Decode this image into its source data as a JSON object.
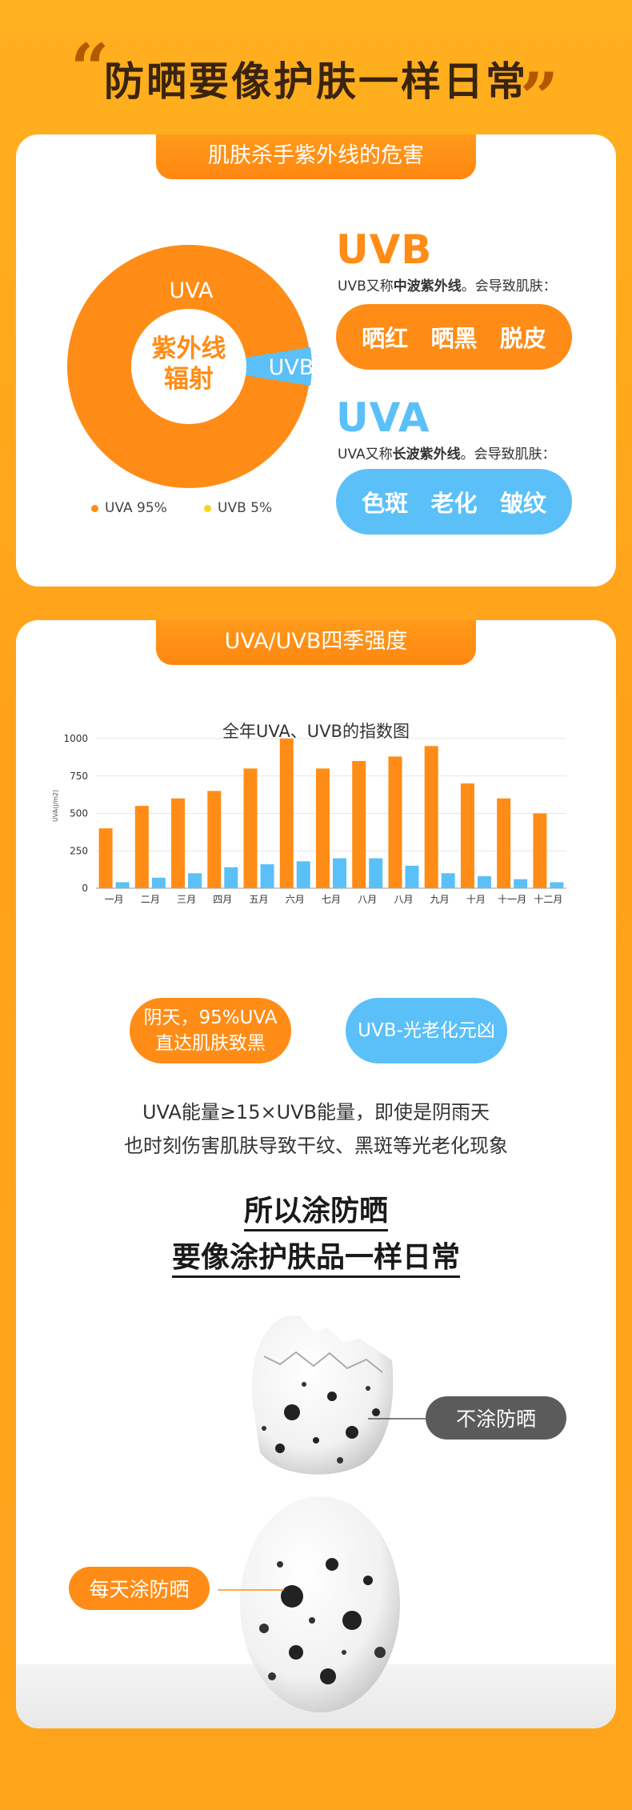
{
  "header": {
    "title": "防晒要像护肤一样日常",
    "open_quote": "“",
    "close_quote": "”"
  },
  "section1": {
    "tab": "肌肤杀手紫外线的危害",
    "donut": {
      "center_label_line1": "紫外线",
      "center_label_line2": "辐射",
      "uva_label": "UVA",
      "uvb_label": "UVB",
      "uva_share": 95,
      "uvb_share": 5,
      "uva_color": "#ff8c16",
      "uvb_color": "#5bc0f8"
    },
    "legend": [
      {
        "label": "UVA 95%",
        "color": "#ff8c16"
      },
      {
        "label": "UVB 5%",
        "color": "#ffd21f"
      }
    ],
    "uvb": {
      "heading": "UVB",
      "desc_prefix": "UVB又称",
      "desc_bold": "中波紫外线",
      "desc_suffix": "。会导致肌肤：",
      "effects": [
        "晒红",
        "晒黑",
        "脱皮"
      ],
      "color": "#ff8c16"
    },
    "uva": {
      "heading": "UVA",
      "desc_prefix": "UVA又称",
      "desc_bold": "长波紫外线",
      "desc_suffix": "。会导致肌肤：",
      "effects": [
        "色斑",
        "老化",
        "皱纹"
      ],
      "color": "#5bc0f8"
    }
  },
  "section2": {
    "tab": "UVA/UVB四季强度",
    "chart_title": "全年UVA、UVB的指数图",
    "bubble_left_line1": "阴天，95%UVA",
    "bubble_left_line2": "直达肌肤致黑",
    "bubble_right": "UVB-光老化元凶",
    "para_line1": "UVA能量≥15×UVB能量，即使是阴雨天",
    "para_line2": "也时刻伤害肌肤导致干纹、黑斑等光老化现象",
    "conclusion_line1": "所以涂防晒",
    "conclusion_line2": "要像涂护肤品一样日常",
    "tag_no": "不涂防晒",
    "tag_yes": "每天涂防晒"
  },
  "chart_data": {
    "type": "bar",
    "title": "全年UVA、UVB的指数图",
    "ylabel": "UVA(j/m2)",
    "ylim": [
      0,
      1000
    ],
    "yticks": [
      "0",
      "250",
      "500",
      "750",
      "1000"
    ],
    "categories": [
      "一月",
      "二月",
      "三月",
      "四月",
      "五月",
      "六月",
      "七月",
      "八月",
      "八月",
      "九月",
      "十月",
      "十一月",
      "十二月"
    ],
    "series": [
      {
        "values": [
          400,
          550,
          600,
          650,
          800,
          1000,
          800,
          850,
          880,
          950,
          700,
          600,
          500
        ],
        "color": "#ff8c16"
      },
      {
        "values": [
          40,
          70,
          100,
          140,
          160,
          180,
          200,
          200,
          150,
          100,
          80,
          60,
          40
        ],
        "color": "#5bc0f8"
      }
    ],
    "grid": true
  }
}
